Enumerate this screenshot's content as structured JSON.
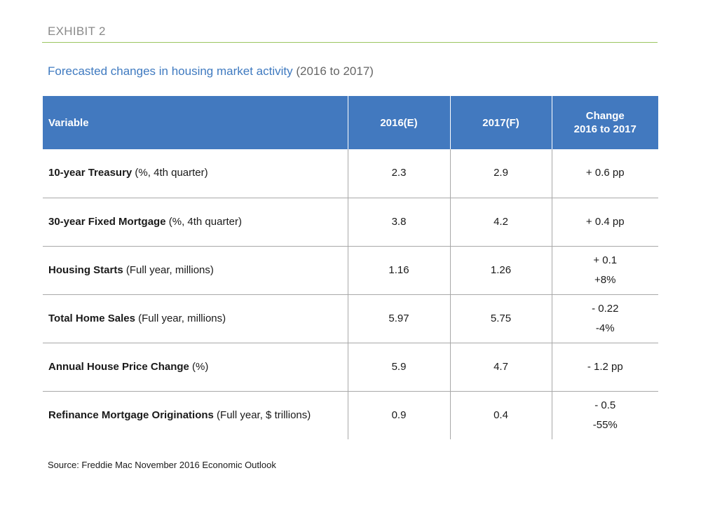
{
  "exhibit_label": "EXHIBIT 2",
  "chart_data": {
    "type": "table",
    "title": "Forecasted changes in housing market activity",
    "subtitle": "(2016 to 2017)",
    "columns": [
      "Variable",
      "2016(E)",
      "2017(F)",
      "Change 2016 to 2017"
    ],
    "header": {
      "variable": "Variable",
      "y2016": "2016(E)",
      "y2017": "2017(F)",
      "change_line1": "Change",
      "change_line2": "2016 to 2017"
    },
    "rows": [
      {
        "name": "10-year Treasury",
        "detail": " (%, 4th quarter)",
        "v2016": "2.3",
        "v2017": "2.9",
        "change": [
          "+ 0.6 pp"
        ]
      },
      {
        "name": "30-year Fixed Mortgage",
        "detail": " (%, 4th quarter)",
        "v2016": "3.8",
        "v2017": "4.2",
        "change": [
          "+ 0.4 pp"
        ]
      },
      {
        "name": "Housing Starts",
        "detail": " (Full year, millions)",
        "v2016": "1.16",
        "v2017": "1.26",
        "change": [
          "+ 0.1",
          "+8%"
        ]
      },
      {
        "name": "Total Home Sales",
        "detail": " (Full year, millions)",
        "v2016": "5.97",
        "v2017": "5.75",
        "change": [
          "- 0.22",
          "-4%"
        ]
      },
      {
        "name": "Annual House Price Change",
        "detail": " (%)",
        "v2016": "5.9",
        "v2017": "4.7",
        "change": [
          "- 1.2 pp"
        ]
      },
      {
        "name": "Refinance Mortgage Originations",
        "detail": " (Full year, $ trillions)",
        "v2016": "0.9",
        "v2017": "0.4",
        "change": [
          "- 0.5",
          "-55%"
        ]
      }
    ],
    "source": "Source: Freddie Mac November 2016 Economic Outlook"
  },
  "colors": {
    "header_fill": "#4279bf",
    "title_blue": "#3f7ac0",
    "rule_green": "#9bc660",
    "gray_text": "#8a8a8a"
  }
}
